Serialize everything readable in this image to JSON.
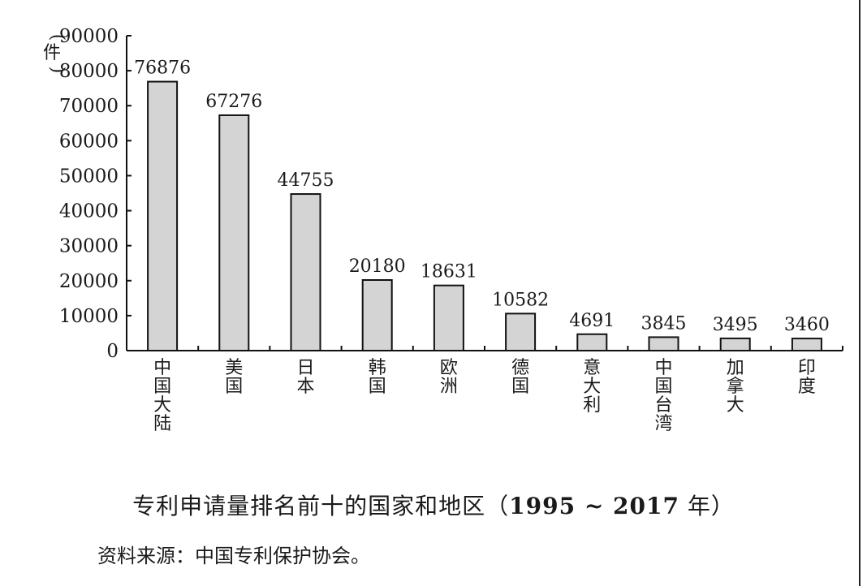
{
  "chart_data": {
    "type": "bar",
    "unit_label": "件",
    "categories": [
      "中国大陆",
      "美国",
      "日本",
      "韩国",
      "欧洲",
      "德国",
      "意大利",
      "中国台湾",
      "加拿大",
      "印度"
    ],
    "values": [
      76876,
      67276,
      44755,
      20180,
      18631,
      10582,
      4691,
      3845,
      3495,
      3460
    ],
    "ylim": [
      0,
      90000
    ],
    "yticks": [
      0,
      10000,
      20000,
      30000,
      40000,
      50000,
      60000,
      70000,
      80000,
      90000
    ],
    "bar_color": "#d4d4d4",
    "bar_stroke": "#111111"
  },
  "caption": {
    "text_start": "专利申请量排名前十的国家和地区（",
    "years": "1995 ~ 2017",
    "text_end": " 年）"
  },
  "source": "资料来源：中国专利保护协会。"
}
